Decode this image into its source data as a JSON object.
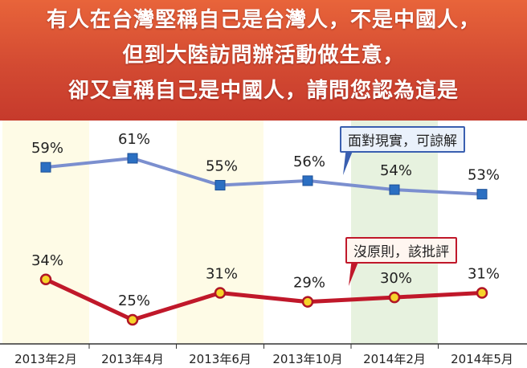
{
  "header": {
    "lines": [
      "有人在台灣堅稱自己是台灣人，不是中國人，",
      "但到大陸訪問辦活動做生意，",
      "卻又宣稱自己是中國人，請問您認為這是"
    ],
    "color": "#d34a32"
  },
  "chart_data": {
    "type": "line",
    "categories": [
      "2013年2月",
      "2013年4月",
      "2013年6月",
      "2013年10月",
      "2014年2月",
      "2014年5月"
    ],
    "ylim": [
      0,
      80
    ],
    "grid": false,
    "value_suffix": "%",
    "series": [
      {
        "name": "面對現實，可諒解",
        "values": [
          59,
          61,
          55,
          56,
          54,
          53
        ],
        "color": "#7b8fcf",
        "marker_color": "#2b6fc2",
        "marker": "square",
        "legend_border": "#3a5fb0",
        "legend_bg": "#eaf1fb"
      },
      {
        "name": "沒原則，該批評",
        "values": [
          34,
          25,
          31,
          29,
          30,
          31
        ],
        "color": "#c0182a",
        "marker_color": "#f6d42a",
        "marker": "circle",
        "legend_border": "#c0182a",
        "legend_bg": "#fff6f0"
      }
    ],
    "column_band_colors": [
      "#fefbe6",
      "#ffffff",
      "#fefbe6",
      "#ffffff",
      "#e7f2df",
      "#ffffff"
    ]
  }
}
